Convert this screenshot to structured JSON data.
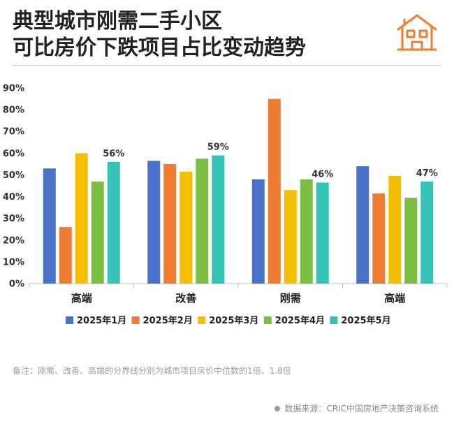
{
  "title_lines": [
    "典型城市刚需二手小区",
    "可比房价下跌项目占比变动趋势"
  ],
  "footnote": "备注：刚需、改善、高端的分界线分别为城市项目房价中位数的1倍、1.8倍",
  "source": "数据来源：CRIC中国房地产决策咨询系统",
  "icons": {
    "logo": "house-icon",
    "source_bullet": "dot-icon"
  },
  "chart_data": {
    "type": "bar",
    "title": "典型城市刚需二手小区可比房价下跌项目占比变动趋势",
    "xlabel": "",
    "ylabel": "",
    "categories": [
      "高端",
      "改善",
      "刚需",
      "高端"
    ],
    "series": [
      {
        "name": "2025年1月",
        "color": "#4A72C8",
        "values": [
          53,
          56.5,
          48,
          54
        ]
      },
      {
        "name": "2025年2月",
        "color": "#EE7D31",
        "values": [
          26,
          55,
          85,
          41.5
        ]
      },
      {
        "name": "2025年3月",
        "color": "#F5BE00",
        "values": [
          60,
          51.5,
          43,
          49.5
        ]
      },
      {
        "name": "2025年4月",
        "color": "#7BBF42",
        "values": [
          47,
          57.5,
          48,
          39.5
        ]
      },
      {
        "name": "2025年5月",
        "color": "#34C3B6",
        "values": [
          56,
          59,
          46.5,
          47
        ]
      }
    ],
    "data_labels": [
      {
        "category_index": 0,
        "series_index": 4,
        "text": "56%"
      },
      {
        "category_index": 1,
        "series_index": 4,
        "text": "59%"
      },
      {
        "category_index": 2,
        "series_index": 4,
        "text": "46%"
      },
      {
        "category_index": 3,
        "series_index": 4,
        "text": "47%"
      }
    ],
    "y_ticks": [
      0,
      10,
      20,
      30,
      40,
      50,
      60,
      70,
      80,
      90
    ],
    "y_tick_suffix": "%",
    "ylim": [
      0,
      90
    ],
    "grid": false,
    "legend_position": "bottom"
  }
}
